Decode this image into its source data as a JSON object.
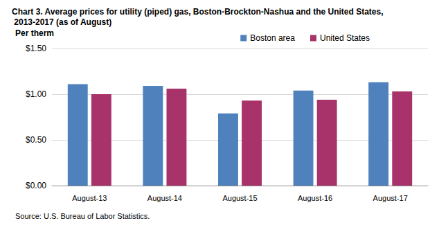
{
  "chart_data": {
    "type": "bar",
    "title": "Chart 3. Average prices for utility (piped) gas, Boston-Brockton-Nashua and the United States, 2013-2017 (as of August)",
    "y_label": "Per therm",
    "source": "Source: U.S. Bureau of Labor Statistics.",
    "categories": [
      "August-13",
      "August-14",
      "August-15",
      "August-16",
      "August-17"
    ],
    "series": [
      {
        "name": "Boston area",
        "color": "#4F81BD",
        "values": [
          1.11,
          1.09,
          0.79,
          1.04,
          1.13
        ]
      },
      {
        "name": "United States",
        "color": "#A8336A",
        "values": [
          1.0,
          1.06,
          0.93,
          0.94,
          1.03
        ]
      }
    ],
    "ylim": [
      0,
      1.5
    ],
    "yticks": [
      {
        "value": 0,
        "label": "$0.00"
      },
      {
        "value": 0.5,
        "label": "$0.50"
      },
      {
        "value": 1.0,
        "label": "$1.00"
      },
      {
        "value": 1.5,
        "label": "$1.50"
      }
    ],
    "grid": true,
    "legend": "top-right"
  }
}
